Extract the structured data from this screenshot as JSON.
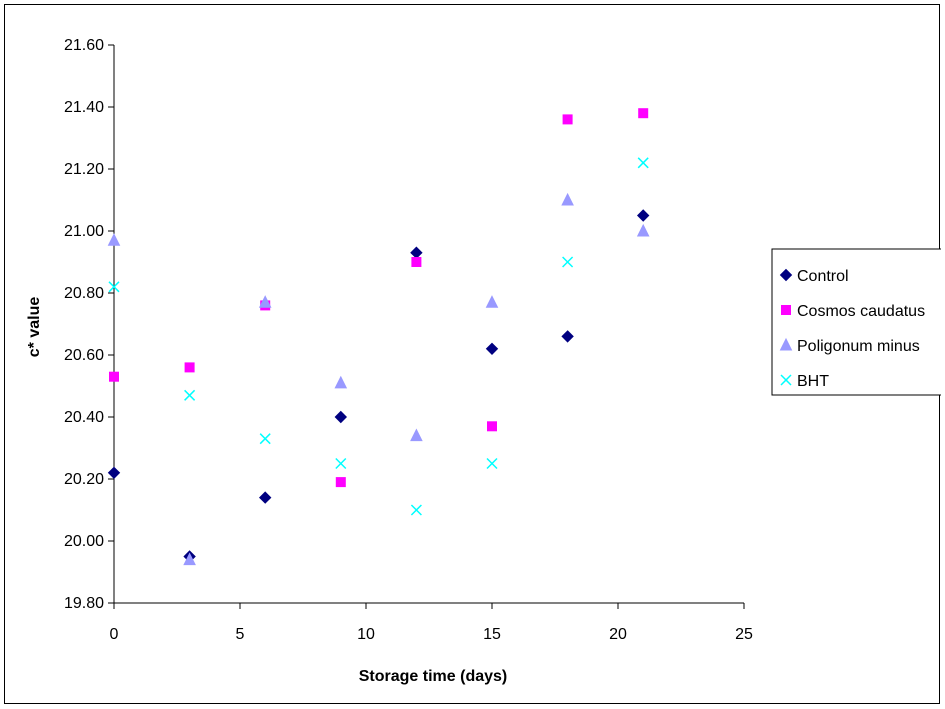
{
  "colors": {
    "background": "#ffffff",
    "axis": "#000000"
  },
  "chart_data": {
    "type": "scatter",
    "title": "",
    "xlabel": "Storage time (days)",
    "ylabel": "c* value",
    "xlim": [
      0,
      25
    ],
    "ylim": [
      19.8,
      21.6
    ],
    "xticks": [
      0,
      5,
      10,
      15,
      20,
      25
    ],
    "yticks": [
      19.8,
      20.0,
      20.2,
      20.4,
      20.6,
      20.8,
      21.0,
      21.2,
      21.4,
      21.6
    ],
    "ytick_labels": [
      "19.80",
      "20.00",
      "20.20",
      "20.40",
      "20.60",
      "20.80",
      "21.00",
      "21.20",
      "21.40",
      "21.60"
    ],
    "grid": false,
    "legend_position": "right",
    "x": [
      0,
      3,
      6,
      9,
      12,
      15,
      18,
      21
    ],
    "series": [
      {
        "name": "Control",
        "marker": "diamond",
        "color": "#000080",
        "values": [
          20.22,
          19.95,
          20.14,
          20.4,
          20.93,
          20.62,
          20.66,
          21.05
        ]
      },
      {
        "name": "Cosmos caudatus",
        "marker": "square",
        "color": "#FF00FF",
        "values": [
          20.53,
          20.56,
          20.76,
          20.19,
          20.9,
          20.37,
          21.36,
          21.38
        ]
      },
      {
        "name": "Poligonum minus",
        "marker": "triangle",
        "color": "#9999FF",
        "values": [
          20.97,
          19.94,
          20.77,
          20.51,
          20.34,
          20.77,
          21.1,
          21.0
        ]
      },
      {
        "name": "BHT",
        "marker": "x",
        "color": "#00FFFF",
        "values": [
          20.82,
          20.47,
          20.33,
          20.25,
          20.1,
          20.25,
          20.9,
          21.22
        ]
      }
    ]
  }
}
